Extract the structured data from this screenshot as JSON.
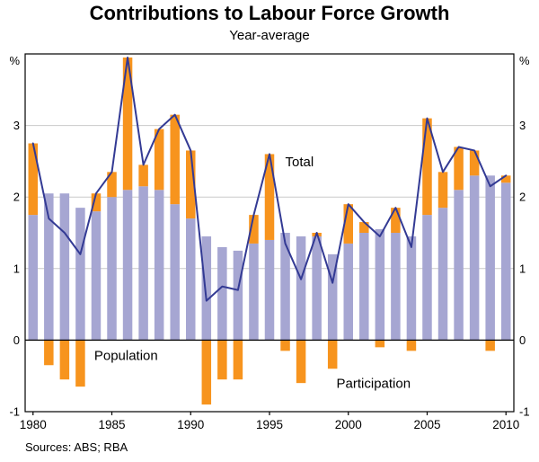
{
  "title": "Contributions to Labour Force Growth",
  "subtitle": "Year-average",
  "source": "Sources: ABS; RBA",
  "chart_data": {
    "type": "bar",
    "stacked": true,
    "title": "Contributions to Labour Force Growth",
    "subtitle": "Year-average",
    "y_unit": "%",
    "ylim": [
      -1,
      4
    ],
    "yticks": [
      -1,
      0,
      1,
      2,
      3
    ],
    "xticks": [
      1980,
      1985,
      1990,
      1995,
      2000,
      2005,
      2010
    ],
    "grid": true,
    "colors": {
      "grid": "#c9c9c9",
      "axis": "#000000",
      "population": "#a6a6d2",
      "participation": "#f7941e",
      "total": "#333a94"
    },
    "x": [
      1980,
      1981,
      1982,
      1983,
      1984,
      1985,
      1986,
      1987,
      1988,
      1989,
      1990,
      1991,
      1992,
      1993,
      1994,
      1995,
      1996,
      1997,
      1998,
      1999,
      2000,
      2001,
      2002,
      2003,
      2004,
      2005,
      2006,
      2007,
      2008,
      2009,
      2010
    ],
    "series": [
      {
        "name": "Population",
        "type": "bar",
        "color": "#a6a6d2",
        "values": [
          1.75,
          2.05,
          2.05,
          1.85,
          1.8,
          2.0,
          2.1,
          2.15,
          2.1,
          1.9,
          1.7,
          1.45,
          1.3,
          1.25,
          1.35,
          1.4,
          1.5,
          1.45,
          1.45,
          1.2,
          1.35,
          1.5,
          1.55,
          1.5,
          1.45,
          1.75,
          1.85,
          2.1,
          2.3,
          2.3,
          2.2
        ]
      },
      {
        "name": "Participation",
        "type": "bar",
        "color": "#f7941e",
        "values": [
          1.0,
          -0.35,
          -0.55,
          -0.65,
          0.25,
          0.35,
          1.85,
          0.3,
          0.85,
          1.25,
          0.95,
          -0.9,
          -0.55,
          -0.55,
          0.4,
          1.2,
          -0.15,
          -0.6,
          0.05,
          -0.4,
          0.55,
          0.15,
          -0.1,
          0.35,
          -0.15,
          1.35,
          0.5,
          0.6,
          0.35,
          -0.15,
          0.1
        ]
      },
      {
        "name": "Total",
        "type": "line",
        "color": "#333a94",
        "values": [
          2.75,
          1.7,
          1.5,
          1.2,
          2.05,
          2.35,
          3.95,
          2.45,
          2.95,
          3.15,
          2.65,
          0.55,
          0.75,
          0.7,
          1.75,
          2.6,
          1.35,
          0.85,
          1.5,
          0.8,
          1.9,
          1.65,
          1.45,
          1.85,
          1.3,
          3.1,
          2.35,
          2.7,
          2.65,
          2.15,
          2.3
        ]
      }
    ],
    "annotations": [
      {
        "text": "Total",
        "x": 1996.9,
        "y": 2.43,
        "color": "#333a94",
        "bold": false
      },
      {
        "text": "Population",
        "x": 1985.9,
        "y": -0.28,
        "color": "#a6a6d2",
        "bold": false
      },
      {
        "text": "Participation",
        "x": 2001.6,
        "y": -0.67,
        "color": "#f7941e",
        "bold": false
      }
    ]
  }
}
